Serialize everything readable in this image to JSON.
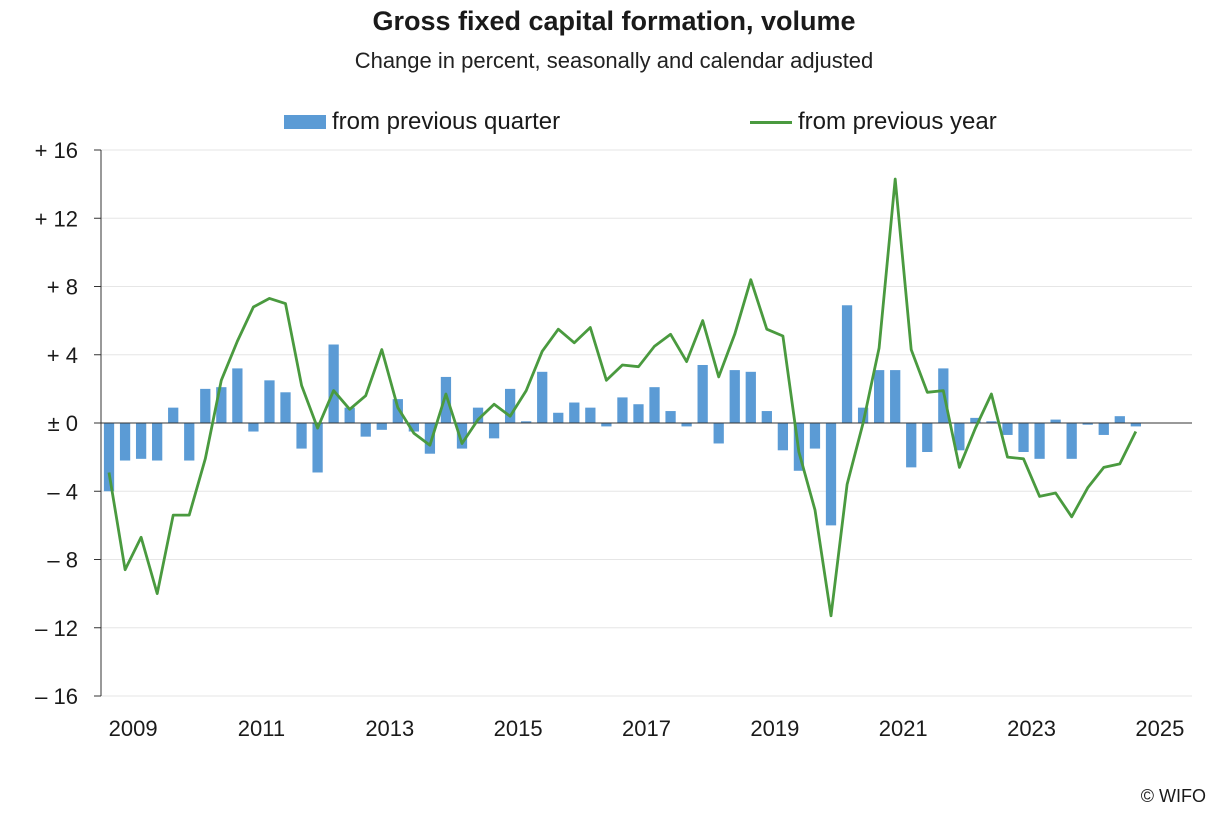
{
  "chart_data": {
    "type": "bar+line",
    "title": "Gross fixed capital formation, volume",
    "subtitle": "Change in percent, seasonally and calendar adjusted",
    "legend": [
      "from previous quarter",
      "from previous year"
    ],
    "colors": {
      "bars": "#5b9bd5",
      "line": "#4a9a3f",
      "grid": "#e6e6e6",
      "axis": "#333333"
    },
    "ylim": [
      -16,
      16
    ],
    "y_ticks": [
      16,
      12,
      8,
      4,
      0,
      -4,
      -8,
      -12,
      -16
    ],
    "y_tick_labels": [
      "+ 16",
      "+ 12",
      "+ 8",
      "+ 4",
      "± 0",
      "– 4",
      "– 8",
      "– 12",
      "– 16"
    ],
    "x_start": "2008Q4",
    "x_tick_labels": [
      "2009",
      "2011",
      "2013",
      "2015",
      "2017",
      "2019",
      "2021",
      "2023",
      "2025"
    ],
    "series": [
      {
        "name": "from previous quarter",
        "type": "bar",
        "values": [
          -4.0,
          -2.2,
          -2.1,
          -2.2,
          0.9,
          -2.2,
          2.0,
          2.1,
          3.2,
          -0.5,
          2.5,
          1.8,
          -1.5,
          -2.9,
          4.6,
          0.9,
          -0.8,
          -0.4,
          1.4,
          -0.5,
          -1.8,
          2.7,
          -1.5,
          0.9,
          -0.9,
          2.0,
          0.1,
          3.0,
          0.6,
          1.2,
          0.9,
          -0.2,
          1.5,
          1.1,
          2.1,
          0.7,
          -0.2,
          3.4,
          -1.2,
          3.1,
          3.0,
          0.7,
          -1.6,
          -2.8,
          -1.5,
          -6.0,
          6.9,
          0.9,
          3.1,
          3.1,
          -2.6,
          -1.7,
          3.2,
          -1.6,
          0.3,
          0.1,
          -0.7,
          -1.7,
          -2.1,
          0.2,
          -2.1,
          -0.1,
          -0.7,
          0.4,
          -0.2
        ]
      },
      {
        "name": "from previous year",
        "type": "line",
        "values": [
          -2.9,
          -8.6,
          -6.7,
          -10.0,
          -5.4,
          -5.4,
          -2.1,
          2.5,
          4.8,
          6.8,
          7.3,
          7.0,
          2.2,
          -0.3,
          1.9,
          0.8,
          1.6,
          4.3,
          0.9,
          -0.6,
          -1.3,
          1.7,
          -1.2,
          0.2,
          1.1,
          0.4,
          1.9,
          4.2,
          5.5,
          4.7,
          5.6,
          2.5,
          3.4,
          3.3,
          4.5,
          5.2,
          3.6,
          6.0,
          2.7,
          5.2,
          8.4,
          5.5,
          5.1,
          -1.7,
          -5.1,
          -11.3,
          -3.6,
          0.0,
          4.4,
          14.3,
          4.3,
          1.8,
          1.9,
          -2.6,
          -0.3,
          1.7,
          -2.0,
          -2.1,
          -4.3,
          -4.1,
          -5.5,
          -3.8,
          -2.6,
          -2.4,
          -0.5
        ]
      }
    ]
  },
  "footer": {
    "copyright": "© WIFO"
  }
}
